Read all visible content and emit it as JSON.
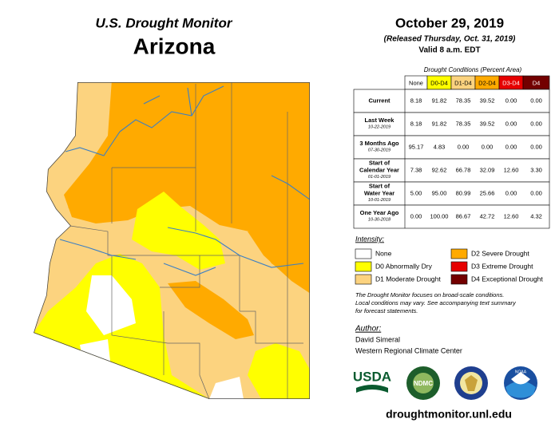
{
  "header": {
    "title": "U.S. Drought Monitor",
    "state": "Arizona",
    "date": "October 29, 2019",
    "released": "(Released Thursday, Oct. 31, 2019)",
    "valid": "Valid 8 a.m. EDT"
  },
  "table": {
    "caption": "Drought Conditions (Percent Area)",
    "columns": [
      {
        "label": "None",
        "color": "#ffffff",
        "text": "#000000"
      },
      {
        "label": "D0-D4",
        "color": "#ffff00",
        "text": "#000000"
      },
      {
        "label": "D1-D4",
        "color": "#fcd37f",
        "text": "#000000"
      },
      {
        "label": "D2-D4",
        "color": "#ffaa00",
        "text": "#000000"
      },
      {
        "label": "D3-D4",
        "color": "#e60000",
        "text": "#ffffff"
      },
      {
        "label": "D4",
        "color": "#730000",
        "text": "#ffffff"
      }
    ],
    "rows": [
      {
        "label": [
          "Current"
        ],
        "values": [
          "8.18",
          "91.82",
          "78.35",
          "39.52",
          "0.00",
          "0.00"
        ]
      },
      {
        "label": [
          "Last Week"
        ],
        "date": "10-22-2019",
        "values": [
          "8.18",
          "91.82",
          "78.35",
          "39.52",
          "0.00",
          "0.00"
        ]
      },
      {
        "label": [
          "3 Months Ago"
        ],
        "date": "07-30-2019",
        "values": [
          "95.17",
          "4.83",
          "0.00",
          "0.00",
          "0.00",
          "0.00"
        ]
      },
      {
        "label": [
          "Start of",
          "Calendar Year"
        ],
        "date": "01-01-2019",
        "values": [
          "7.38",
          "92.62",
          "66.78",
          "32.09",
          "12.60",
          "3.30"
        ]
      },
      {
        "label": [
          "Start of",
          "Water Year"
        ],
        "date": "10-01-2019",
        "values": [
          "5.00",
          "95.00",
          "80.99",
          "25.66",
          "0.00",
          "0.00"
        ]
      },
      {
        "label": [
          "One Year Ago"
        ],
        "date": "10-30-2018",
        "values": [
          "0.00",
          "100.00",
          "86.67",
          "42.72",
          "12.60",
          "4.32"
        ]
      }
    ]
  },
  "legend": {
    "title": "Intensity:",
    "items": [
      {
        "label": "None",
        "color": "#ffffff"
      },
      {
        "label": "D0 Abnormally Dry",
        "color": "#ffff00"
      },
      {
        "label": "D1 Moderate Drought",
        "color": "#fcd37f"
      },
      {
        "label": "D2 Severe Drought",
        "color": "#ffaa00"
      },
      {
        "label": "D3 Extreme Drought",
        "color": "#e60000"
      },
      {
        "label": "D4 Exceptional Drought",
        "color": "#730000"
      }
    ]
  },
  "notes": [
    "The Drought Monitor focuses on broad-scale conditions.",
    "Local conditions may vary. See accompanying text summary",
    "for forecast statements."
  ],
  "author": {
    "heading": "Author:",
    "name": "David Simeral",
    "organization": "Western Regional Climate Center"
  },
  "logos": [
    "USDA",
    "NDMC",
    "NOAA"
  ],
  "url": "droughtmonitor.unl.edu"
}
